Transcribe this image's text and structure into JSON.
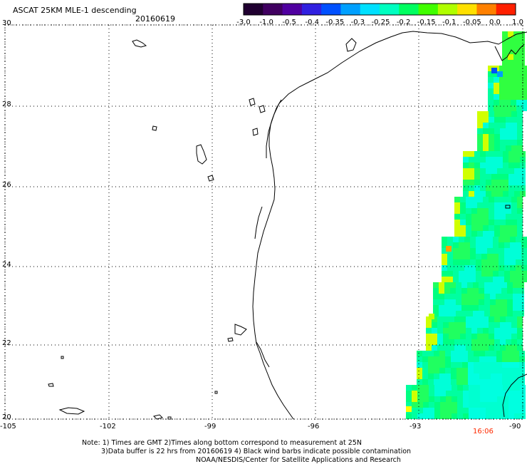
{
  "header": {
    "title": "ASCAT 25KM MLE-1 descending",
    "date": "20160619"
  },
  "colorbar": {
    "labels": [
      "-3.0",
      "-1.0",
      "-0.5",
      "-0.4",
      "-0.35",
      "-0.3",
      "-0.25",
      "-0.2",
      "-0.15",
      "-0.1",
      "-0.05",
      "0.0",
      "1.0"
    ],
    "colors": [
      "#200030",
      "#400060",
      "#5000a0",
      "#3020e0",
      "#0050ff",
      "#00a0ff",
      "#00e0ff",
      "#00ffc0",
      "#00ff60",
      "#40ff00",
      "#b0ff00",
      "#ffe000",
      "#ff8000",
      "#ff2000"
    ]
  },
  "map": {
    "lat_labels": [
      "30",
      "28",
      "26",
      "24",
      "22",
      "20"
    ],
    "lon_labels": [
      "-105",
      "-102",
      "-99",
      "-96",
      "-93",
      "-90"
    ],
    "time_label": "16:06"
  },
  "notes": {
    "line1": "Note: 1) Times are GMT 2)Times along bottom correspond to measurement at 25N",
    "line2": "3)Data buffer is 22 hrs from 20160619 4) Black wind barbs indicate possible contamination",
    "line3": "NOAA/NESDIS/Center for Satellite Applications and Research"
  }
}
